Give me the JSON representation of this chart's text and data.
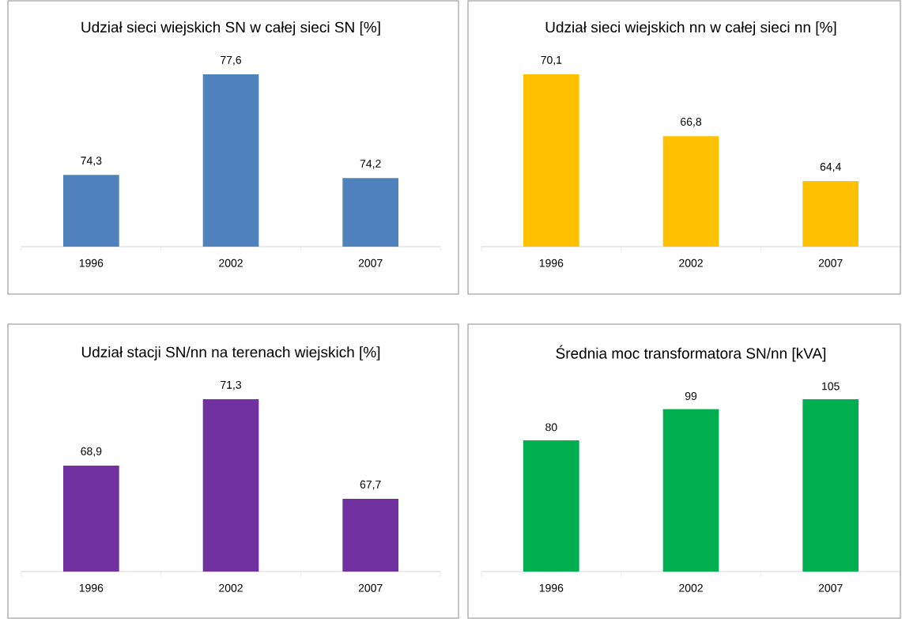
{
  "chart_data": [
    {
      "type": "bar",
      "title": "Udział sieci wiejskich SN w całej sieci SN [%]",
      "categories": [
        "1996",
        "2002",
        "2007"
      ],
      "values": [
        74.3,
        77.6,
        74.2
      ],
      "value_labels": [
        "74,3",
        "77,6",
        "74,2"
      ],
      "color": "#4f81bd",
      "ylim": [
        71.95,
        77.6
      ]
    },
    {
      "type": "bar",
      "title": "Udział sieci wiejskich nn w całej sieci nn [%]",
      "categories": [
        "1996",
        "2002",
        "2007"
      ],
      "values": [
        70.1,
        66.8,
        64.4
      ],
      "value_labels": [
        "70,1",
        "66,8",
        "64,4"
      ],
      "color": "#ffc000",
      "ylim": [
        60.9,
        70.1
      ]
    },
    {
      "type": "bar",
      "title": "Udział stacji SN/nn na terenach wiejskich [%]",
      "categories": [
        "1996",
        "2002",
        "2007"
      ],
      "values": [
        68.9,
        71.3,
        67.7
      ],
      "value_labels": [
        "68,9",
        "71,3",
        "67,7"
      ],
      "color": "#7030a0",
      "ylim": [
        65.07,
        71.3
      ]
    },
    {
      "type": "bar",
      "title": "Średnia moc transformatora SN/nn [kVA]",
      "categories": [
        "1996",
        "2002",
        "2007"
      ],
      "values": [
        80,
        99,
        105
      ],
      "value_labels": [
        "80",
        "99",
        "105"
      ],
      "color": "#00b050",
      "ylim": [
        0,
        105
      ]
    }
  ]
}
